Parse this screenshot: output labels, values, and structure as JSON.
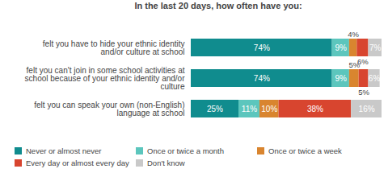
{
  "chart_data": {
    "type": "bar",
    "orientation": "horizontal",
    "stacked": true,
    "data_labels": true,
    "tick_labels": "y",
    "title": "In the last 20 days, how often have you:",
    "categories": [
      "felt you have to hide your ethnic identity and/or culture at school",
      "felt you can't join in some school activities at school because of your ethnic identity and/or culture",
      "felt you can speak your own (non-English) language at school"
    ],
    "xlim": [
      0,
      100
    ],
    "series": [
      {
        "name": "Never or almost never",
        "color": "#108c8e",
        "values": [
          74,
          74,
          25
        ],
        "value_labels": [
          "74%",
          "74%",
          "25%"
        ]
      },
      {
        "name": "Once or twice a month",
        "color": "#5cc6bd",
        "values": [
          9,
          9,
          11
        ],
        "value_labels": [
          "9%",
          "9%",
          "11%"
        ]
      },
      {
        "name": "Once or twice a week",
        "color": "#d9852f",
        "values": [
          4,
          5,
          10
        ],
        "value_labels": [
          "4%",
          "5%",
          "10%"
        ]
      },
      {
        "name": "Every day or almost every day",
        "color": "#d8452f",
        "values": [
          6,
          5,
          38
        ],
        "value_labels": [
          "6%",
          "5%",
          "38%"
        ]
      },
      {
        "name": "Don't know",
        "color": "#c9c9c9",
        "values": [
          7,
          6,
          16
        ],
        "value_labels": [
          "7%",
          "6%",
          "16%"
        ]
      }
    ]
  }
}
